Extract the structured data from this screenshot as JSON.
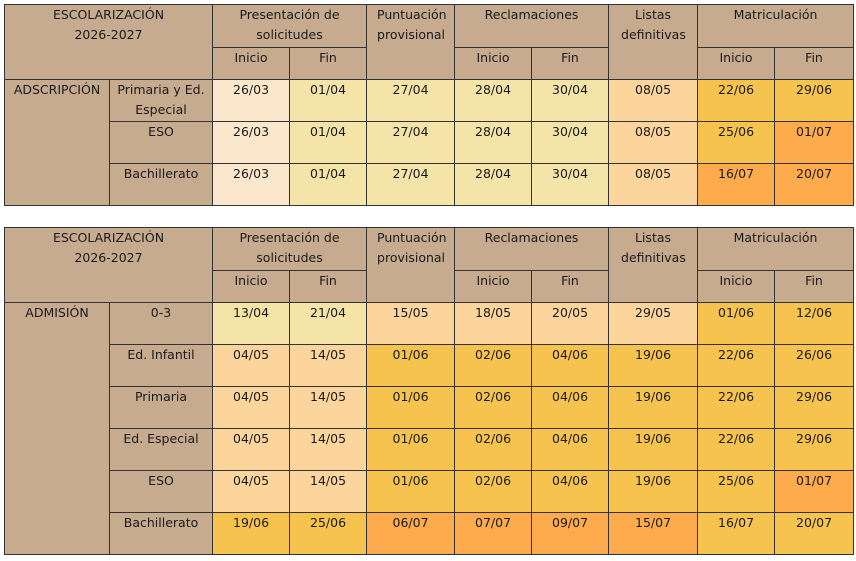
{
  "tables": [
    {
      "title_line1": "ESCOLARIZACIÓN",
      "title_line2": "2026-2027",
      "section": "ADSCRIPCIÓN",
      "headers": {
        "presentacion": "Presentación de solicitudes",
        "puntuacion": "Puntuación provisional",
        "reclamaciones": "Reclamaciones",
        "listas": "Listas definitivas",
        "matriculacion": "Matriculación",
        "inicio": "Inicio",
        "fin": "Fin"
      },
      "rows": [
        {
          "label": "Primaria y Ed. Especial",
          "values": [
            "26/03",
            "01/04",
            "27/04",
            "28/04",
            "30/04",
            "08/05",
            "22/06",
            "29/06"
          ],
          "colors": [
            "c0",
            "c1",
            "c1",
            "c1",
            "c1",
            "c2",
            "c3",
            "c3"
          ]
        },
        {
          "label": "ESO",
          "values": [
            "26/03",
            "01/04",
            "27/04",
            "28/04",
            "30/04",
            "08/05",
            "25/06",
            "01/07"
          ],
          "colors": [
            "c0",
            "c1",
            "c1",
            "c1",
            "c1",
            "c2",
            "c3",
            "c4"
          ]
        },
        {
          "label": "Bachillerato",
          "values": [
            "26/03",
            "01/04",
            "27/04",
            "28/04",
            "30/04",
            "08/05",
            "16/07",
            "20/07"
          ],
          "colors": [
            "c0",
            "c1",
            "c1",
            "c1",
            "c1",
            "c2",
            "c4",
            "c4"
          ]
        }
      ]
    },
    {
      "title_line1": "ESCOLARIZACIÓN",
      "title_line2": "2026-2027",
      "section": "ADMISIÓN",
      "headers": {
        "presentacion": "Presentación de solicitudes",
        "puntuacion": "Puntuación provisional",
        "reclamaciones": "Reclamaciones",
        "listas": "Listas definitivas",
        "matriculacion": "Matriculación",
        "inicio": "Inicio",
        "fin": "Fin"
      },
      "rows": [
        {
          "label": "0-3",
          "values": [
            "13/04",
            "21/04",
            "15/05",
            "18/05",
            "20/05",
            "29/05",
            "01/06",
            "12/06"
          ],
          "colors": [
            "c1",
            "c1",
            "c2",
            "c2",
            "c2",
            "c2",
            "c3",
            "c3"
          ]
        },
        {
          "label": "Ed. Infantil",
          "values": [
            "04/05",
            "14/05",
            "01/06",
            "02/06",
            "04/06",
            "19/06",
            "22/06",
            "26/06"
          ],
          "colors": [
            "c2",
            "c2",
            "c3",
            "c3",
            "c3",
            "c3",
            "c3",
            "c3"
          ]
        },
        {
          "label": "Primaria",
          "values": [
            "04/05",
            "14/05",
            "01/06",
            "02/06",
            "04/06",
            "19/06",
            "22/06",
            "29/06"
          ],
          "colors": [
            "c2",
            "c2",
            "c3",
            "c3",
            "c3",
            "c3",
            "c3",
            "c3"
          ]
        },
        {
          "label": "Ed. Especial",
          "values": [
            "04/05",
            "14/05",
            "01/06",
            "02/06",
            "04/06",
            "19/06",
            "22/06",
            "29/06"
          ],
          "colors": [
            "c2",
            "c2",
            "c3",
            "c3",
            "c3",
            "c3",
            "c3",
            "c3"
          ]
        },
        {
          "label": "ESO",
          "values": [
            "04/05",
            "14/05",
            "01/06",
            "02/06",
            "04/06",
            "19/06",
            "25/06",
            "01/07"
          ],
          "colors": [
            "c2",
            "c2",
            "c3",
            "c3",
            "c3",
            "c3",
            "c3",
            "c4"
          ]
        },
        {
          "label": "Bachillerato",
          "values": [
            "19/06",
            "25/06",
            "06/07",
            "07/07",
            "09/07",
            "15/07",
            "16/07",
            "20/07"
          ],
          "colors": [
            "c3",
            "c3",
            "c4",
            "c4",
            "c4",
            "c4",
            "c3",
            "c3"
          ]
        }
      ]
    }
  ]
}
